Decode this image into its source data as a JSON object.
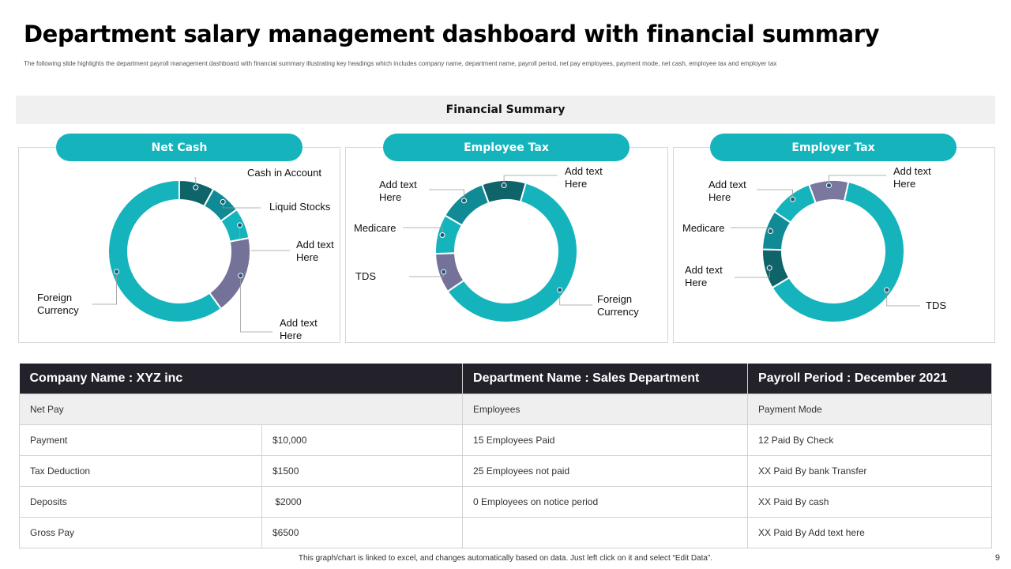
{
  "title": "Department salary management dashboard with financial summary",
  "subtitle": "The following slide highlights the department payroll management dashboard with financial summary illustrating key headings which includes company name, department name, payroll period, net pay employees, payment mode, net cash, employee tax and employer tax",
  "summary_heading": "Financial Summary",
  "colors": {
    "teal": "#15b4bd",
    "dark_teal": "#0e6469",
    "mid_teal": "#108b95",
    "purple": "#75729a",
    "lavender": "#7b789f",
    "header_dark": "#23222b"
  },
  "chart_data": [
    {
      "type": "pie",
      "title": "Net Cash",
      "categories": [
        "Cash in Account",
        "Liquid Stocks",
        "Add text Here",
        "Add text Here",
        "Foreign Currency"
      ],
      "values": [
        8,
        7,
        7,
        18,
        60
      ],
      "colors": [
        "#0e6469",
        "#108b95",
        "#15b4bd",
        "#75729a",
        "#15b4bd"
      ]
    },
    {
      "type": "pie",
      "title": "Employee Tax",
      "categories": [
        "Add text Here",
        "Foreign Currency",
        "TDS",
        "Medicare",
        "Add text Here"
      ],
      "values": [
        10,
        61,
        9,
        9,
        11
      ],
      "colors": [
        "#0e6469",
        "#15b4bd",
        "#75729a",
        "#15b4bd",
        "#108b95"
      ]
    },
    {
      "type": "pie",
      "title": "Employer Tax",
      "categories": [
        "Add text Here",
        "TDS",
        "Add text Here",
        "Medicare",
        "Add text Here"
      ],
      "values": [
        9,
        63,
        9,
        9,
        10
      ],
      "colors": [
        "#7b789f",
        "#15b4bd",
        "#0e6469",
        "#108b95",
        "#15b4bd"
      ]
    }
  ],
  "table": {
    "headers": [
      "Company Name : XYZ inc",
      "Department Name : Sales Department",
      "Payroll Period : December 2021"
    ],
    "subheader": [
      "Net Pay",
      "Employees",
      "Payment Mode"
    ],
    "rows": [
      [
        "Payment",
        "$10,000",
        "15 Employees Paid",
        "12 Paid By Check"
      ],
      [
        "Tax Deduction",
        "$1500",
        "25 Employees not paid",
        "XX Paid By bank Transfer"
      ],
      [
        "Deposits",
        " $2000",
        "0 Employees on notice period",
        "XX Paid By cash"
      ],
      [
        "Gross Pay",
        "$6500",
        "",
        "XX Paid By Add text here"
      ]
    ]
  },
  "footer": "This graph/chart is linked to excel, and changes automatically based on data. Just left click on it and select “Edit Data”.",
  "page_number": "9"
}
